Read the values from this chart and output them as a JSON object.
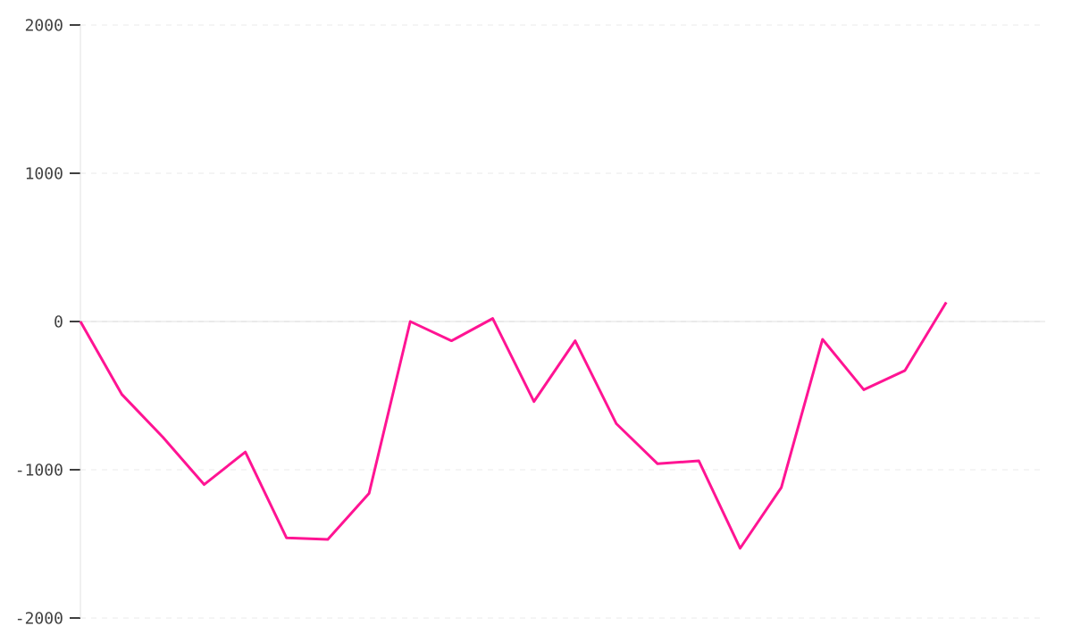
{
  "chart_data": {
    "type": "line",
    "categories": [
      null,
      null,
      null,
      null,
      null,
      null,
      null,
      null,
      null,
      null,
      null,
      null,
      null,
      null,
      null,
      null,
      null,
      null,
      null,
      null,
      null,
      null
    ],
    "values": [
      0,
      -490,
      -780,
      -1100,
      -880,
      -1460,
      -1470,
      -1160,
      0,
      -130,
      20,
      -540,
      -130,
      -690,
      -960,
      -940,
      -1530,
      -1120,
      -120,
      -460,
      -330,
      130
    ],
    "color": "#ff1493",
    "ylim": [
      -2000,
      2000
    ],
    "yticks": [
      -2000,
      -1000,
      0,
      1000,
      2000
    ],
    "tick_labels": "y",
    "grid": "y",
    "marker": "none",
    "line_style": "solid"
  }
}
